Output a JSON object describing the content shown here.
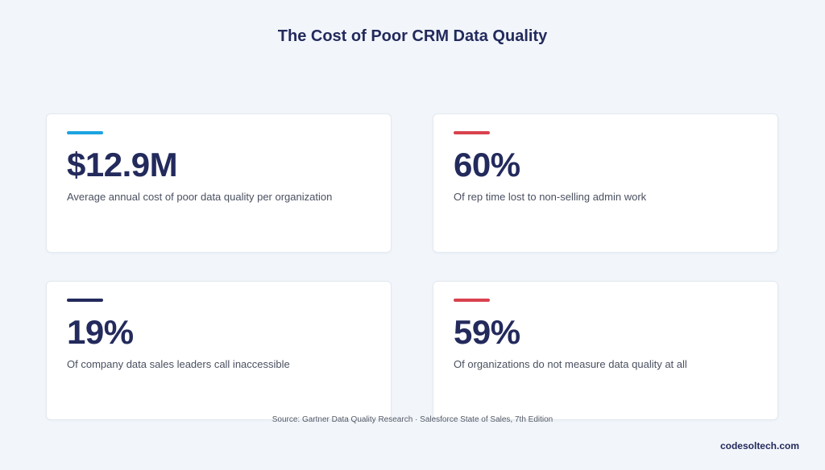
{
  "title": "The Cost of Poor CRM Data Quality",
  "colors": {
    "background": "#f2f6fb",
    "text_primary": "#232a5c",
    "accent_blue": "#1ca3e0",
    "accent_red": "#d9424e",
    "accent_navy": "#232a5c"
  },
  "cards": [
    {
      "value": "$12.9M",
      "description": "Average annual cost of poor data quality per organization",
      "accent": "#1ca3e0"
    },
    {
      "value": "60%",
      "description": "Of rep time lost to non-selling admin work",
      "accent": "#d9424e"
    },
    {
      "value": "19%",
      "description": "Of company data sales leaders call inaccessible",
      "accent": "#232a5c"
    },
    {
      "value": "59%",
      "description": "Of organizations do not measure data quality at all",
      "accent": "#d9424e"
    }
  ],
  "source": "Source: Gartner Data Quality Research · Salesforce State of Sales, 7th Edition",
  "brand": "codesoltech.com"
}
